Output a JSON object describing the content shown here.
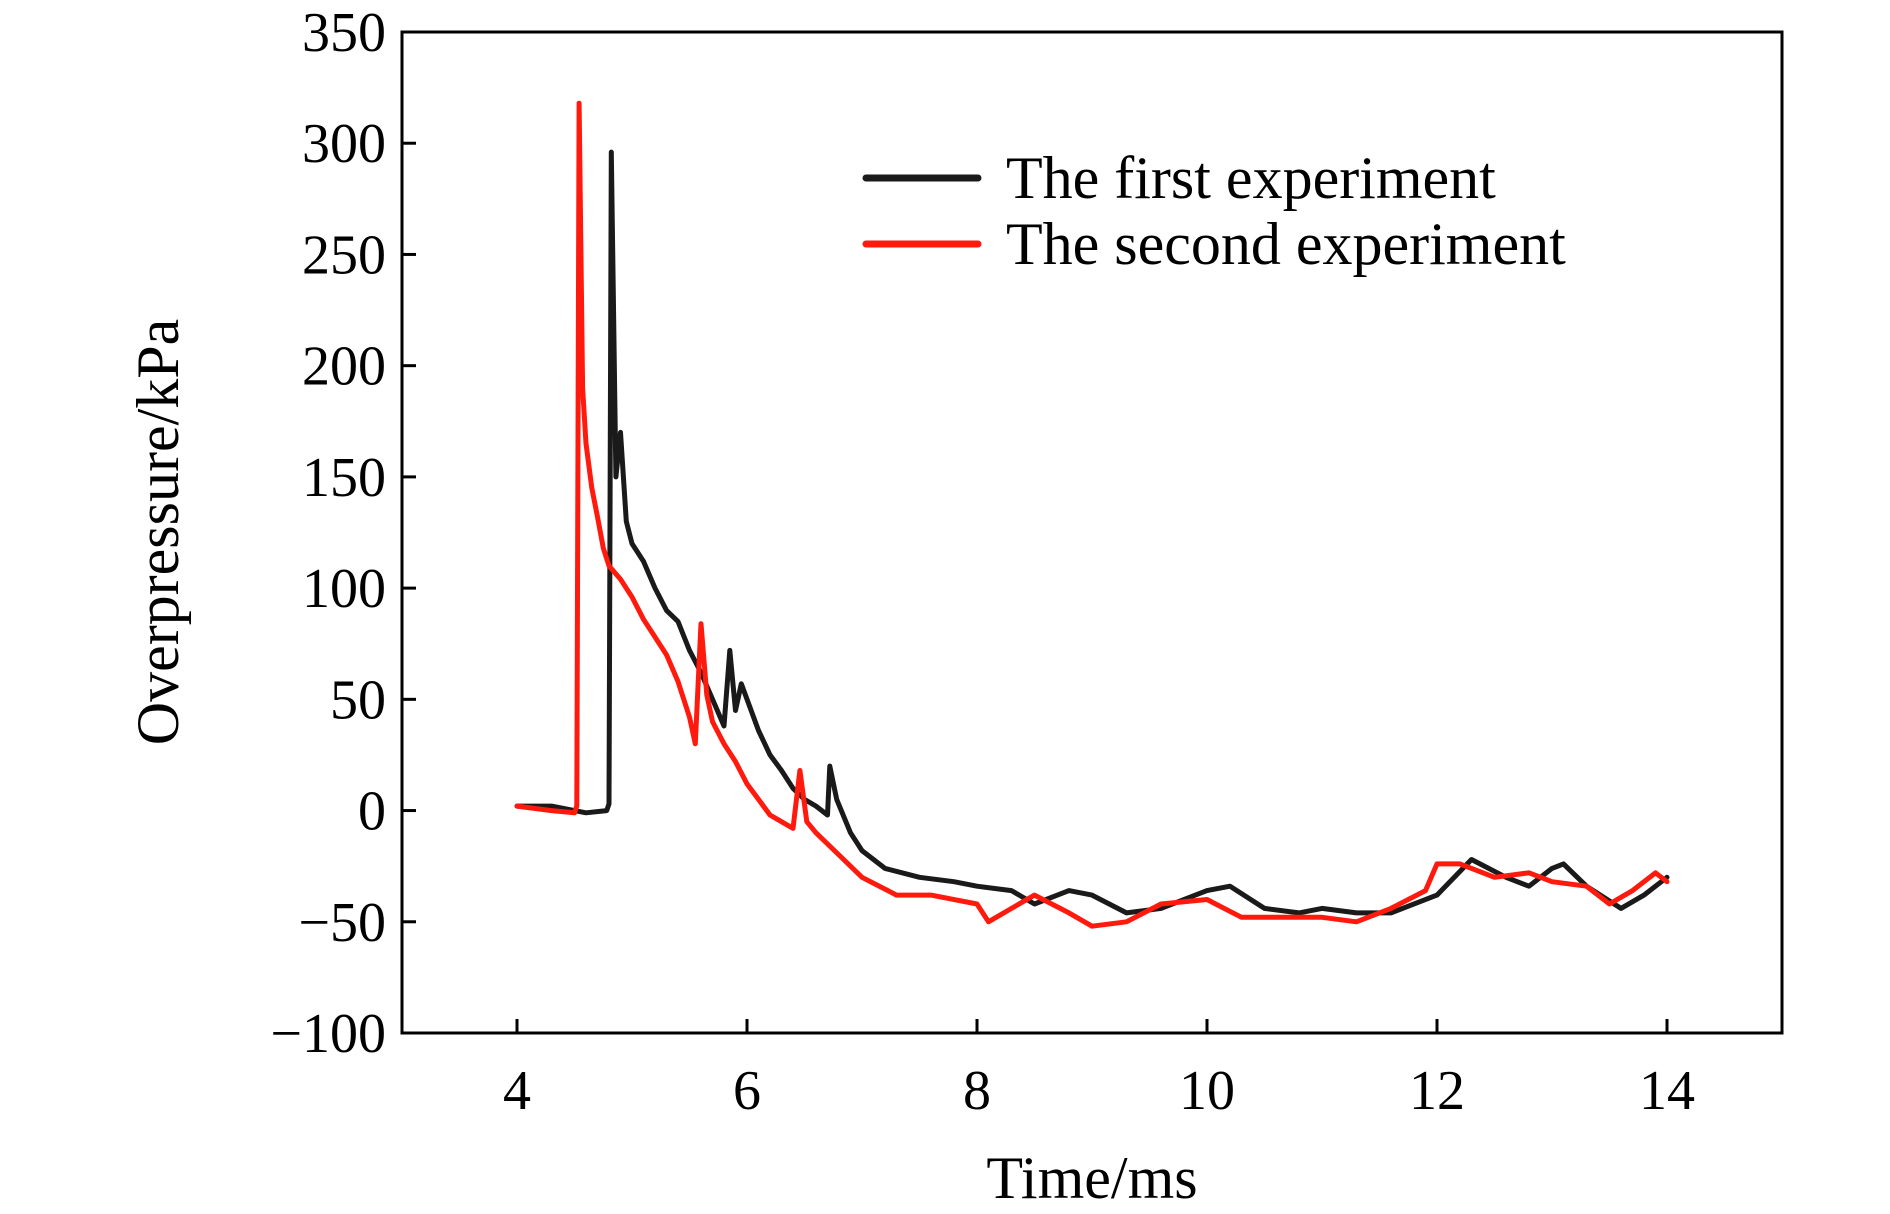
{
  "chart_data": {
    "type": "line",
    "xlabel": "Time/ms",
    "ylabel": "Overpressure/kPa",
    "xlim": [
      3,
      15
    ],
    "ylim": [
      -100,
      350
    ],
    "xticks": [
      4,
      6,
      8,
      10,
      12,
      14
    ],
    "xtick_labels": [
      "4",
      "6",
      "8",
      "10",
      "12",
      "14"
    ],
    "yticks": [
      -100,
      -50,
      0,
      50,
      100,
      150,
      200,
      250,
      300,
      350
    ],
    "ytick_labels": [
      "−100",
      "−50",
      "0",
      "50",
      "100",
      "150",
      "200",
      "250",
      "300",
      "350"
    ],
    "grid": false,
    "legend_position": "top-right",
    "series": [
      {
        "name": "The first experiment",
        "color": "#1a1a1a",
        "points": [
          [
            4.0,
            2
          ],
          [
            4.3,
            2
          ],
          [
            4.6,
            -1
          ],
          [
            4.78,
            0
          ],
          [
            4.8,
            3
          ],
          [
            4.82,
            296
          ],
          [
            4.86,
            150
          ],
          [
            4.9,
            170
          ],
          [
            4.95,
            130
          ],
          [
            5.0,
            120
          ],
          [
            5.1,
            112
          ],
          [
            5.2,
            100
          ],
          [
            5.3,
            90
          ],
          [
            5.4,
            85
          ],
          [
            5.5,
            72
          ],
          [
            5.6,
            62
          ],
          [
            5.7,
            50
          ],
          [
            5.8,
            38
          ],
          [
            5.85,
            72
          ],
          [
            5.9,
            45
          ],
          [
            5.95,
            57
          ],
          [
            6.0,
            50
          ],
          [
            6.1,
            36
          ],
          [
            6.2,
            25
          ],
          [
            6.3,
            18
          ],
          [
            6.4,
            10
          ],
          [
            6.5,
            5
          ],
          [
            6.6,
            2
          ],
          [
            6.7,
            -2
          ],
          [
            6.72,
            20
          ],
          [
            6.78,
            5
          ],
          [
            6.9,
            -10
          ],
          [
            7.0,
            -18
          ],
          [
            7.2,
            -26
          ],
          [
            7.5,
            -30
          ],
          [
            7.8,
            -32
          ],
          [
            8.0,
            -34
          ],
          [
            8.3,
            -36
          ],
          [
            8.5,
            -42
          ],
          [
            8.8,
            -36
          ],
          [
            9.0,
            -38
          ],
          [
            9.3,
            -46
          ],
          [
            9.6,
            -44
          ],
          [
            10.0,
            -36
          ],
          [
            10.2,
            -34
          ],
          [
            10.5,
            -44
          ],
          [
            10.8,
            -46
          ],
          [
            11.0,
            -44
          ],
          [
            11.3,
            -46
          ],
          [
            11.6,
            -46
          ],
          [
            12.0,
            -38
          ],
          [
            12.3,
            -22
          ],
          [
            12.6,
            -30
          ],
          [
            12.8,
            -34
          ],
          [
            13.0,
            -26
          ],
          [
            13.1,
            -24
          ],
          [
            13.3,
            -34
          ],
          [
            13.6,
            -44
          ],
          [
            13.8,
            -38
          ],
          [
            14.0,
            -30
          ]
        ]
      },
      {
        "name": "The second experiment",
        "color": "#ff1a0d",
        "points": [
          [
            4.0,
            2
          ],
          [
            4.3,
            0
          ],
          [
            4.5,
            -1
          ],
          [
            4.52,
            2
          ],
          [
            4.54,
            318
          ],
          [
            4.57,
            190
          ],
          [
            4.6,
            165
          ],
          [
            4.65,
            145
          ],
          [
            4.7,
            132
          ],
          [
            4.75,
            118
          ],
          [
            4.8,
            110
          ],
          [
            4.9,
            104
          ],
          [
            5.0,
            96
          ],
          [
            5.1,
            86
          ],
          [
            5.2,
            78
          ],
          [
            5.3,
            70
          ],
          [
            5.4,
            58
          ],
          [
            5.5,
            42
          ],
          [
            5.55,
            30
          ],
          [
            5.6,
            84
          ],
          [
            5.65,
            52
          ],
          [
            5.7,
            40
          ],
          [
            5.8,
            30
          ],
          [
            5.9,
            22
          ],
          [
            6.0,
            12
          ],
          [
            6.1,
            5
          ],
          [
            6.2,
            -2
          ],
          [
            6.3,
            -5
          ],
          [
            6.4,
            -8
          ],
          [
            6.46,
            18
          ],
          [
            6.52,
            -5
          ],
          [
            6.6,
            -10
          ],
          [
            6.8,
            -20
          ],
          [
            7.0,
            -30
          ],
          [
            7.3,
            -38
          ],
          [
            7.6,
            -38
          ],
          [
            8.0,
            -42
          ],
          [
            8.1,
            -50
          ],
          [
            8.3,
            -44
          ],
          [
            8.5,
            -38
          ],
          [
            8.8,
            -46
          ],
          [
            9.0,
            -52
          ],
          [
            9.3,
            -50
          ],
          [
            9.6,
            -42
          ],
          [
            10.0,
            -40
          ],
          [
            10.3,
            -48
          ],
          [
            10.6,
            -48
          ],
          [
            11.0,
            -48
          ],
          [
            11.3,
            -50
          ],
          [
            11.6,
            -44
          ],
          [
            11.9,
            -36
          ],
          [
            12.0,
            -24
          ],
          [
            12.2,
            -24
          ],
          [
            12.5,
            -30
          ],
          [
            12.8,
            -28
          ],
          [
            13.0,
            -32
          ],
          [
            13.3,
            -34
          ],
          [
            13.5,
            -42
          ],
          [
            13.7,
            -36
          ],
          [
            13.9,
            -28
          ],
          [
            14.0,
            -32
          ]
        ]
      }
    ]
  }
}
